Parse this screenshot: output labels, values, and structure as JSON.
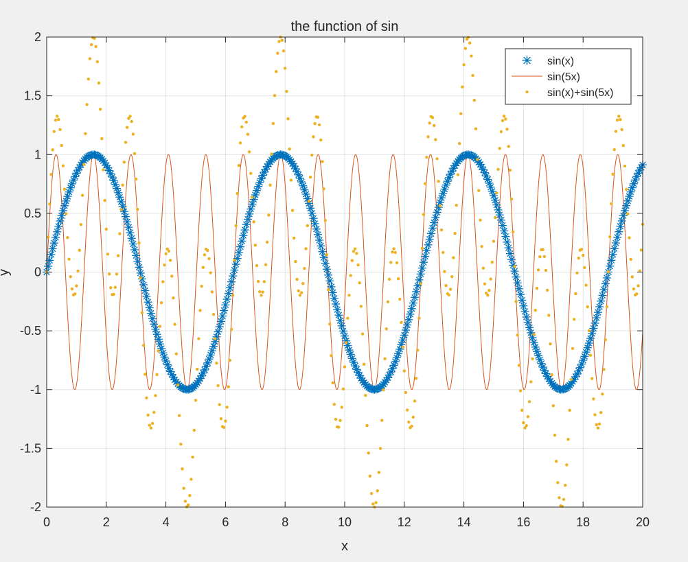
{
  "chart_data": {
    "type": "line",
    "title": "the function of sin",
    "xlabel": "x",
    "ylabel": "y",
    "xlim": [
      0,
      20
    ],
    "ylim": [
      -2,
      2
    ],
    "xticks": [
      0,
      2,
      4,
      6,
      8,
      10,
      12,
      14,
      16,
      18,
      20
    ],
    "yticks": [
      -2,
      -1.5,
      -1,
      -0.5,
      0,
      0.5,
      1,
      1.5,
      2
    ],
    "xtick_labels": [
      "0",
      "2",
      "4",
      "6",
      "8",
      "10",
      "12",
      "14",
      "16",
      "18",
      "20"
    ],
    "ytick_labels": [
      "-2",
      "-1.5",
      "-1",
      "-0.5",
      "0",
      "0.5",
      "1",
      "1.5",
      "2"
    ],
    "grid": true,
    "legend_position": "top-right",
    "x_range": {
      "start": 0,
      "stop": 20,
      "step": 0.05
    },
    "series": [
      {
        "name": "sin(x)",
        "formula": "sin(x)",
        "style": "markers",
        "marker": "asterisk",
        "color": "#0072BD"
      },
      {
        "name": "sin(5x)",
        "formula": "sin(5x)",
        "style": "line",
        "color": "#D95319"
      },
      {
        "name": "sin(x)+sin(5x)",
        "formula": "sin(x)+sin(5x)",
        "style": "markers",
        "marker": "dot",
        "color": "#EDB120"
      }
    ]
  }
}
